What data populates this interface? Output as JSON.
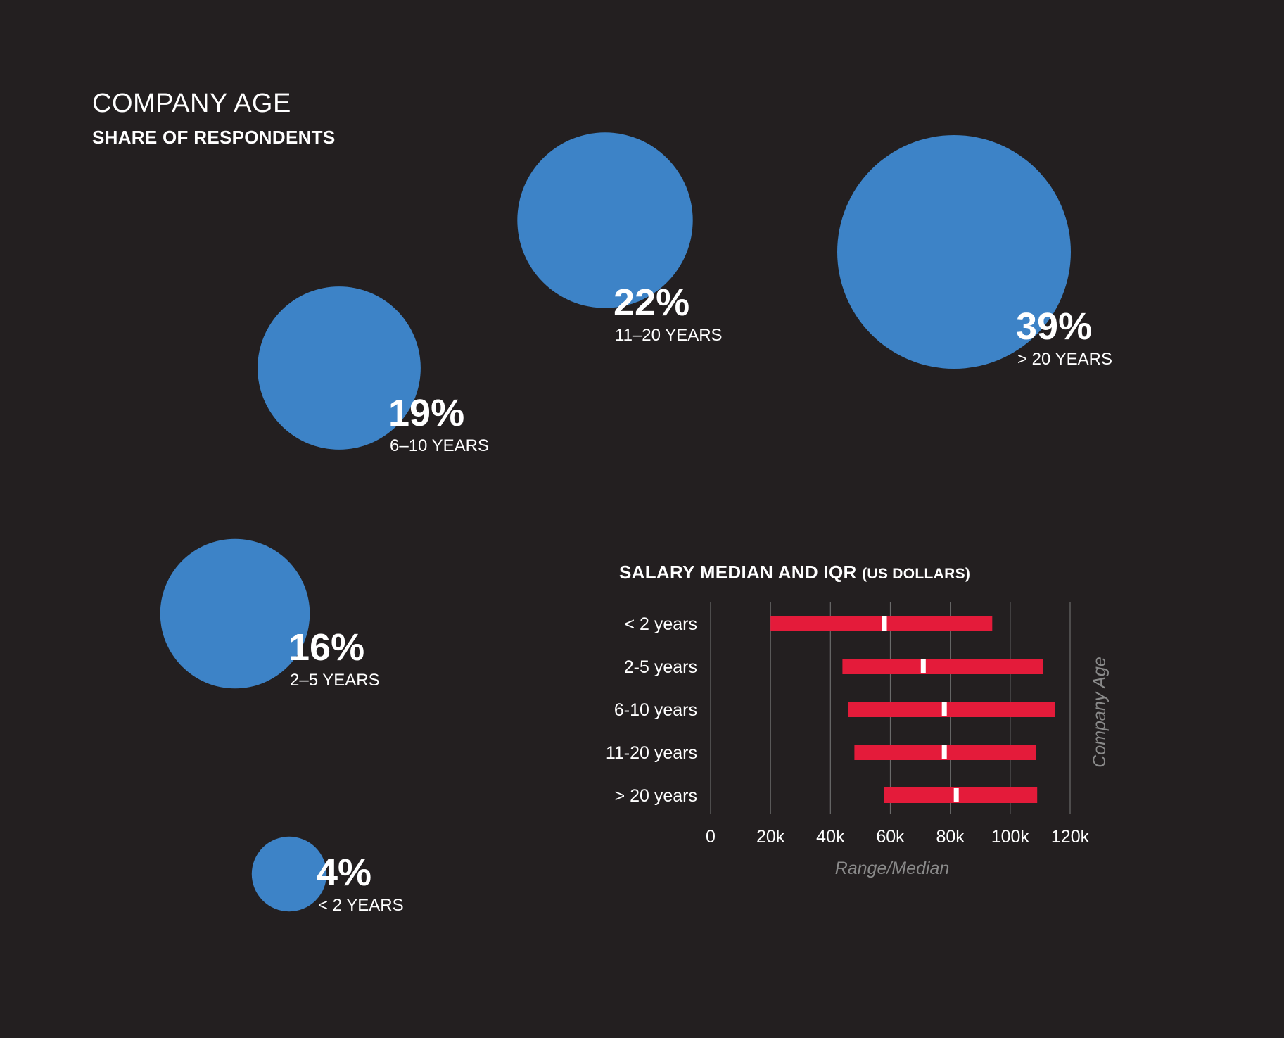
{
  "bubble_chart": {
    "title": "COMPANY AGE",
    "subtitle": "SHARE OF RESPONDENTS"
  },
  "salary_chart": {
    "title": "SALARY MEDIAN AND IQR",
    "title_unit": "(US DOLLARS)",
    "xlabel": "Range/Median",
    "ylabel": "Company Age",
    "x_tick_labels": [
      "0",
      "20k",
      "40k",
      "60k",
      "80k",
      "100k",
      "120k"
    ]
  },
  "colors": {
    "background": "#231f20",
    "bubble": "#3d83c7",
    "bar": "#e41b3a",
    "median_marker": "#ffffff",
    "grid": "#6a6a6a",
    "axis_label": "#8a8a8a"
  },
  "chart_data": [
    {
      "type": "bubble",
      "title": "COMPANY AGE",
      "subtitle": "SHARE OF RESPONDENTS",
      "categories": [
        "< 2 YEARS",
        "2–5 YEARS",
        "6–10 YEARS",
        "11–20 YEARS",
        "> 20 YEARS"
      ],
      "values": [
        4,
        16,
        19,
        22,
        39
      ],
      "value_labels": [
        "4%",
        "16%",
        "19%",
        "22%",
        "39%"
      ]
    },
    {
      "type": "range",
      "title": "SALARY MEDIAN AND IQR (US DOLLARS)",
      "xlabel": "Range/Median",
      "ylabel": "Company Age",
      "categories": [
        "< 2 years",
        "2-5 years",
        "6-10 years",
        "11-20 years",
        "> 20 years"
      ],
      "series": [
        {
          "name": "IQR low",
          "values": [
            20000,
            44000,
            46000,
            48000,
            58000
          ]
        },
        {
          "name": "Median",
          "values": [
            58000,
            71000,
            78000,
            78000,
            82000
          ]
        },
        {
          "name": "IQR high",
          "values": [
            94000,
            111000,
            115000,
            108500,
            109000
          ]
        }
      ],
      "xlim": [
        0,
        120000
      ],
      "x_ticks": [
        0,
        20000,
        40000,
        60000,
        80000,
        100000,
        120000
      ],
      "grid": true
    }
  ]
}
